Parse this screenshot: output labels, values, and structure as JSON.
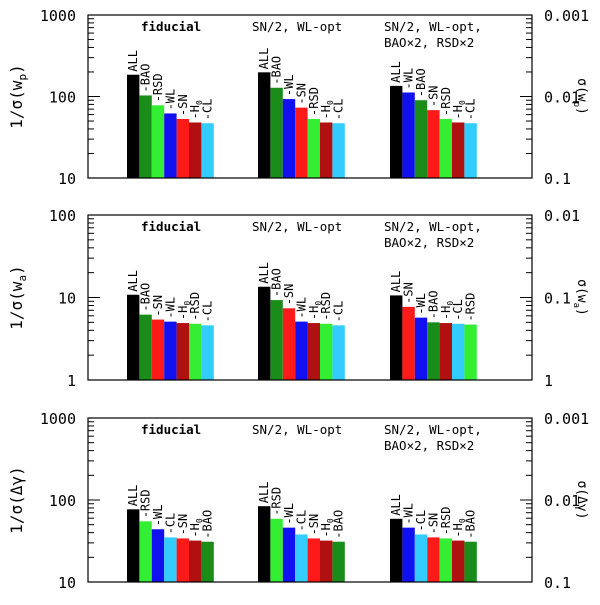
{
  "chart_data": [
    {
      "type": "bar",
      "ylabel": "1/σ(w_p)",
      "ylabel_main": "1/σ(w",
      "ylabel_sub": "p",
      "ylabel_close": ")",
      "right_label": "σ(w_p)",
      "right_label_main": "σ(w",
      "right_label_sub": "p",
      "right_label_close": ")",
      "scale": "log",
      "ylim": [
        10,
        1000
      ],
      "yticks": [
        10,
        100,
        1000
      ],
      "ytick_labels": [
        "10",
        "100",
        "1000"
      ],
      "right_tick_labels": [
        "0.1",
        "0.01",
        "0.001"
      ],
      "groups": [
        {
          "title_lines": [
            "fiducial"
          ],
          "bold": true,
          "bars": [
            {
              "label": "ALL",
              "value": 185,
              "color": "#000000"
            },
            {
              "label": "BAO",
              "value": 103,
              "color": "#1a8c1a"
            },
            {
              "label": "RSD",
              "value": 78,
              "color": "#33ee33"
            },
            {
              "label": "WL",
              "value": 62,
              "color": "#1010f0"
            },
            {
              "label": "SN",
              "value": 53,
              "color": "#ff1a1a"
            },
            {
              "label": "H0",
              "value": 48,
              "color": "#b01010"
            },
            {
              "label": "CL",
              "value": 47,
              "color": "#33ccff"
            }
          ]
        },
        {
          "title_lines": [
            "SN/2, WL-opt"
          ],
          "bold": false,
          "bars": [
            {
              "label": "ALL",
              "value": 198,
              "color": "#000000"
            },
            {
              "label": "BAO",
              "value": 128,
              "color": "#1a8c1a"
            },
            {
              "label": "WL",
              "value": 93,
              "color": "#1010f0"
            },
            {
              "label": "SN",
              "value": 73,
              "color": "#ff1a1a"
            },
            {
              "label": "RSD",
              "value": 53,
              "color": "#33ee33"
            },
            {
              "label": "H0",
              "value": 48,
              "color": "#b01010"
            },
            {
              "label": "CL",
              "value": 47,
              "color": "#33ccff"
            }
          ]
        },
        {
          "title_lines": [
            "SN/2, WL-opt,",
            "BAO×2, RSD×2"
          ],
          "bold": false,
          "bars": [
            {
              "label": "ALL",
              "value": 135,
              "color": "#000000"
            },
            {
              "label": "WL",
              "value": 112,
              "color": "#1010f0"
            },
            {
              "label": "BAO",
              "value": 90,
              "color": "#1a8c1a"
            },
            {
              "label": "SN",
              "value": 68,
              "color": "#ff1a1a"
            },
            {
              "label": "RSD",
              "value": 53,
              "color": "#33ee33"
            },
            {
              "label": "H0",
              "value": 48,
              "color": "#b01010"
            },
            {
              "label": "CL",
              "value": 47,
              "color": "#33ccff"
            }
          ]
        }
      ]
    },
    {
      "type": "bar",
      "ylabel": "1/σ(w_a)",
      "ylabel_main": "1/σ(w",
      "ylabel_sub": "a",
      "ylabel_close": ")",
      "right_label": "σ(w_a)",
      "right_label_main": "σ(w",
      "right_label_sub": "a",
      "right_label_close": ")",
      "scale": "log",
      "ylim": [
        1,
        100
      ],
      "yticks": [
        1,
        10,
        100
      ],
      "ytick_labels": [
        "1",
        "10",
        "100"
      ],
      "right_tick_labels": [
        "1",
        "0.1",
        "0.01"
      ],
      "groups": [
        {
          "title_lines": [
            "fiducial"
          ],
          "bold": true,
          "bars": [
            {
              "label": "ALL",
              "value": 10.8,
              "color": "#000000"
            },
            {
              "label": "BAO",
              "value": 6.2,
              "color": "#1a8c1a"
            },
            {
              "label": "SN",
              "value": 5.4,
              "color": "#ff1a1a"
            },
            {
              "label": "WL",
              "value": 5.1,
              "color": "#1010f0"
            },
            {
              "label": "H0",
              "value": 4.9,
              "color": "#b01010"
            },
            {
              "label": "RSD",
              "value": 4.8,
              "color": "#33ee33"
            },
            {
              "label": "CL",
              "value": 4.6,
              "color": "#33ccff"
            }
          ]
        },
        {
          "title_lines": [
            "SN/2, WL-opt"
          ],
          "bold": false,
          "bars": [
            {
              "label": "ALL",
              "value": 13.5,
              "color": "#000000"
            },
            {
              "label": "BAO",
              "value": 9.3,
              "color": "#1a8c1a"
            },
            {
              "label": "SN",
              "value": 7.4,
              "color": "#ff1a1a"
            },
            {
              "label": "WL",
              "value": 5.1,
              "color": "#1010f0"
            },
            {
              "label": "H0",
              "value": 4.9,
              "color": "#b01010"
            },
            {
              "label": "RSD",
              "value": 4.8,
              "color": "#33ee33"
            },
            {
              "label": "CL",
              "value": 4.6,
              "color": "#33ccff"
            }
          ]
        },
        {
          "title_lines": [
            "SN/2, WL-opt,",
            "BAO×2, RSD×2"
          ],
          "bold": false,
          "bars": [
            {
              "label": "ALL",
              "value": 10.6,
              "color": "#000000"
            },
            {
              "label": "SN",
              "value": 7.7,
              "color": "#ff1a1a"
            },
            {
              "label": "WL",
              "value": 5.7,
              "color": "#1010f0"
            },
            {
              "label": "BAO",
              "value": 5.0,
              "color": "#1a8c1a"
            },
            {
              "label": "H0",
              "value": 4.9,
              "color": "#b01010"
            },
            {
              "label": "CL",
              "value": 4.8,
              "color": "#33ccff"
            },
            {
              "label": "RSD",
              "value": 4.7,
              "color": "#33ee33"
            }
          ]
        }
      ]
    },
    {
      "type": "bar",
      "ylabel": "1/σ(Δγ)",
      "ylabel_main": "1/σ(Δγ)",
      "ylabel_sub": "",
      "ylabel_close": "",
      "right_label": "σ(Δγ)",
      "right_label_main": "σ(Δγ)",
      "right_label_sub": "",
      "right_label_close": "",
      "scale": "log",
      "ylim": [
        10,
        1000
      ],
      "yticks": [
        10,
        100,
        1000
      ],
      "ytick_labels": [
        "10",
        "100",
        "1000"
      ],
      "right_tick_labels": [
        "0.1",
        "0.01",
        "0.001"
      ],
      "groups": [
        {
          "title_lines": [
            "fiducial"
          ],
          "bold": true,
          "bars": [
            {
              "label": "ALL",
              "value": 77,
              "color": "#000000"
            },
            {
              "label": "RSD",
              "value": 55,
              "color": "#33ee33"
            },
            {
              "label": "WL",
              "value": 44,
              "color": "#1010f0"
            },
            {
              "label": "CL",
              "value": 35,
              "color": "#33ccff"
            },
            {
              "label": "SN",
              "value": 34,
              "color": "#ff1a1a"
            },
            {
              "label": "H0",
              "value": 32,
              "color": "#b01010"
            },
            {
              "label": "BAO",
              "value": 31,
              "color": "#1a8c1a"
            }
          ]
        },
        {
          "title_lines": [
            "SN/2, WL-opt"
          ],
          "bold": false,
          "bars": [
            {
              "label": "ALL",
              "value": 84,
              "color": "#000000"
            },
            {
              "label": "RSD",
              "value": 59,
              "color": "#33ee33"
            },
            {
              "label": "WL",
              "value": 46,
              "color": "#1010f0"
            },
            {
              "label": "CL",
              "value": 38,
              "color": "#33ccff"
            },
            {
              "label": "SN",
              "value": 34,
              "color": "#ff1a1a"
            },
            {
              "label": "H0",
              "value": 32,
              "color": "#b01010"
            },
            {
              "label": "BAO",
              "value": 31,
              "color": "#1a8c1a"
            }
          ]
        },
        {
          "title_lines": [
            "SN/2, WL-opt,",
            "BAO×2, RSD×2"
          ],
          "bold": false,
          "bars": [
            {
              "label": "ALL",
              "value": 59,
              "color": "#000000"
            },
            {
              "label": "WL",
              "value": 46,
              "color": "#1010f0"
            },
            {
              "label": "CL",
              "value": 38,
              "color": "#33ccff"
            },
            {
              "label": "SN",
              "value": 35,
              "color": "#ff1a1a"
            },
            {
              "label": "RSD",
              "value": 34,
              "color": "#33ee33"
            },
            {
              "label": "H0",
              "value": 32,
              "color": "#b01010"
            },
            {
              "label": "BAO",
              "value": 31,
              "color": "#1a8c1a"
            }
          ]
        }
      ]
    }
  ]
}
